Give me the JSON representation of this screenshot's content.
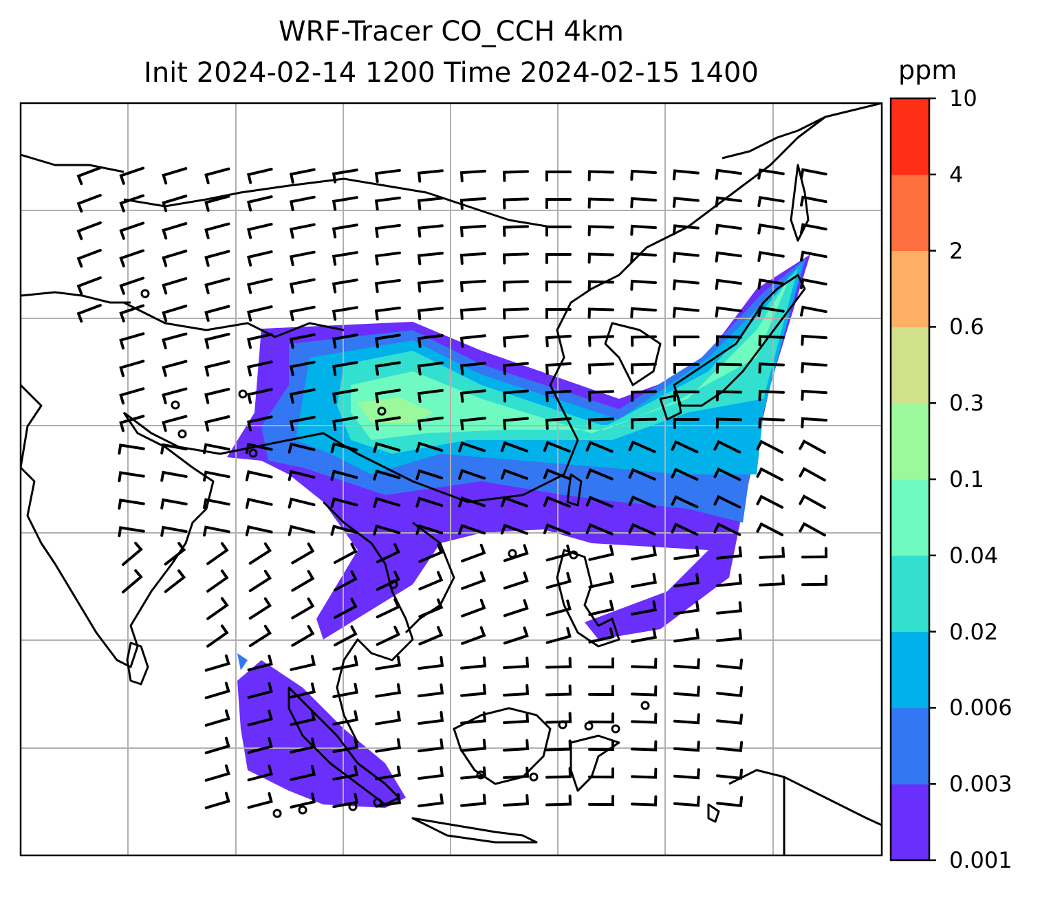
{
  "title": {
    "line1": "WRF-Tracer CO_CCH 4km",
    "line2": "Init 2024-02-14 1200 Time 2024-02-15 1400"
  },
  "colorbar": {
    "units": "ppm",
    "tick_labels": [
      "0.001",
      "0.003",
      "0.006",
      "0.02",
      "0.04",
      "0.1",
      "0.3",
      "0.6",
      "2",
      "4",
      "10"
    ],
    "colors": [
      "#6a2ffb",
      "#3377f2",
      "#00b1ea",
      "#33e0d0",
      "#6efac1",
      "#9cf99b",
      "#d1e08b",
      "#ffb064",
      "#ff7040",
      "#ff2e17"
    ]
  },
  "map": {
    "gridlines": true,
    "contour_colors": {
      "very_low": "#6a2ffb",
      "low": "#3377f2",
      "mid": "#00b1ea",
      "mid2": "#33e0d0",
      "high": "#6efac1",
      "higher": "#9cf99b"
    },
    "wind_barb_color": "#000000",
    "coastline_color": "#000000"
  }
}
